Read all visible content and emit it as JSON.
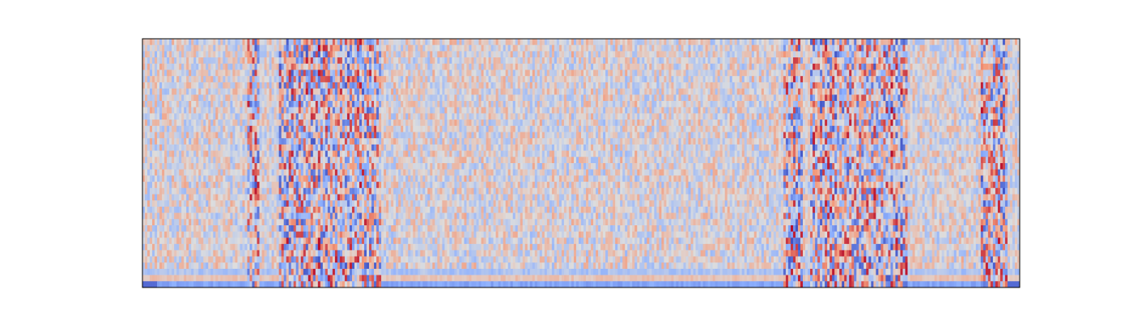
{
  "chart_data": {
    "type": "heatmap",
    "title": "",
    "xlabel": "",
    "ylabel": "",
    "axis_ticks": "none",
    "colormap": "coolwarm",
    "colors": {
      "low": "#3b4cc0",
      "mid": "#dddddd",
      "high": "#b40426",
      "frame": "#000000",
      "background": "#ffffff"
    },
    "grid": {
      "columns": 360,
      "rows": 40,
      "value_range": [
        -1,
        1
      ],
      "bottom_row_value": -0.55,
      "second_row_value": 0.2,
      "third_row_value": -0.3,
      "high_activity_column_bands": [
        [
          0.118,
          0.132
        ],
        [
          0.155,
          0.27
        ],
        [
          0.73,
          0.75
        ],
        [
          0.76,
          0.87
        ],
        [
          0.955,
          0.985
        ]
      ],
      "low_edge_bands": [
        [
          0.0,
          0.015
        ],
        [
          0.985,
          1.0
        ]
      ]
    }
  }
}
